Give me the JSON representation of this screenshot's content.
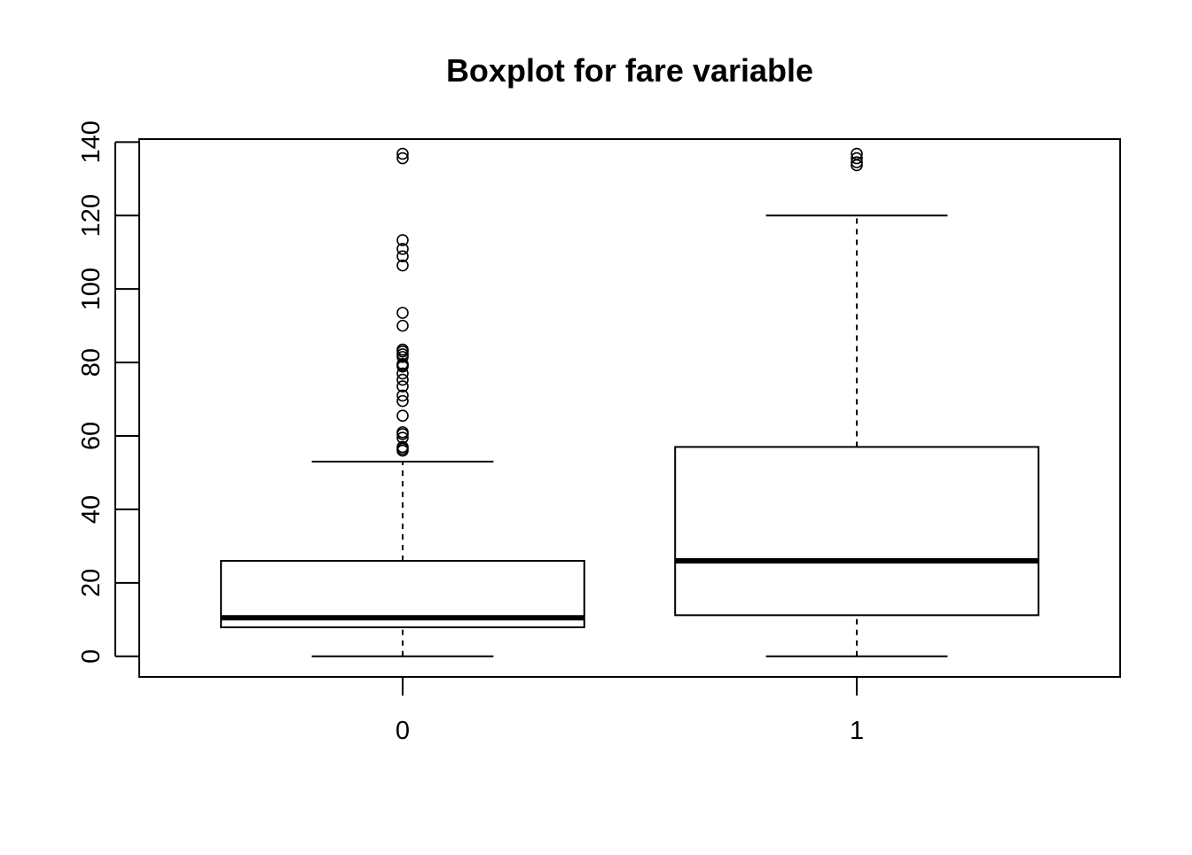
{
  "chart_data": {
    "type": "boxplot",
    "title": "Boxplot for fare variable",
    "xlabel": "",
    "ylabel": "",
    "ylim": [
      -5.6,
      140.8
    ],
    "y_ticks": [
      0,
      20,
      40,
      60,
      80,
      100,
      120,
      140
    ],
    "categories": [
      "0",
      "1"
    ],
    "boxes": [
      {
        "category": "0",
        "whisker_low": 0,
        "q1": 7.9,
        "median": 10.5,
        "q3": 26,
        "whisker_high": 53,
        "outliers": [
          56,
          56.5,
          57,
          59.5,
          60.5,
          61,
          65.5,
          69.5,
          71,
          73.5,
          75.3,
          77,
          78.9,
          79.2,
          79.6,
          81.5,
          82.2,
          83,
          83.5,
          90,
          93.5,
          106.4,
          108.9,
          110.9,
          113.3,
          135.6,
          136.8
        ]
      },
      {
        "category": "1",
        "whisker_low": 0,
        "q1": 11.2,
        "median": 26,
        "q3": 57,
        "whisker_high": 120,
        "outliers": [
          133.7,
          134.5,
          135.6,
          136.8
        ]
      }
    ]
  }
}
